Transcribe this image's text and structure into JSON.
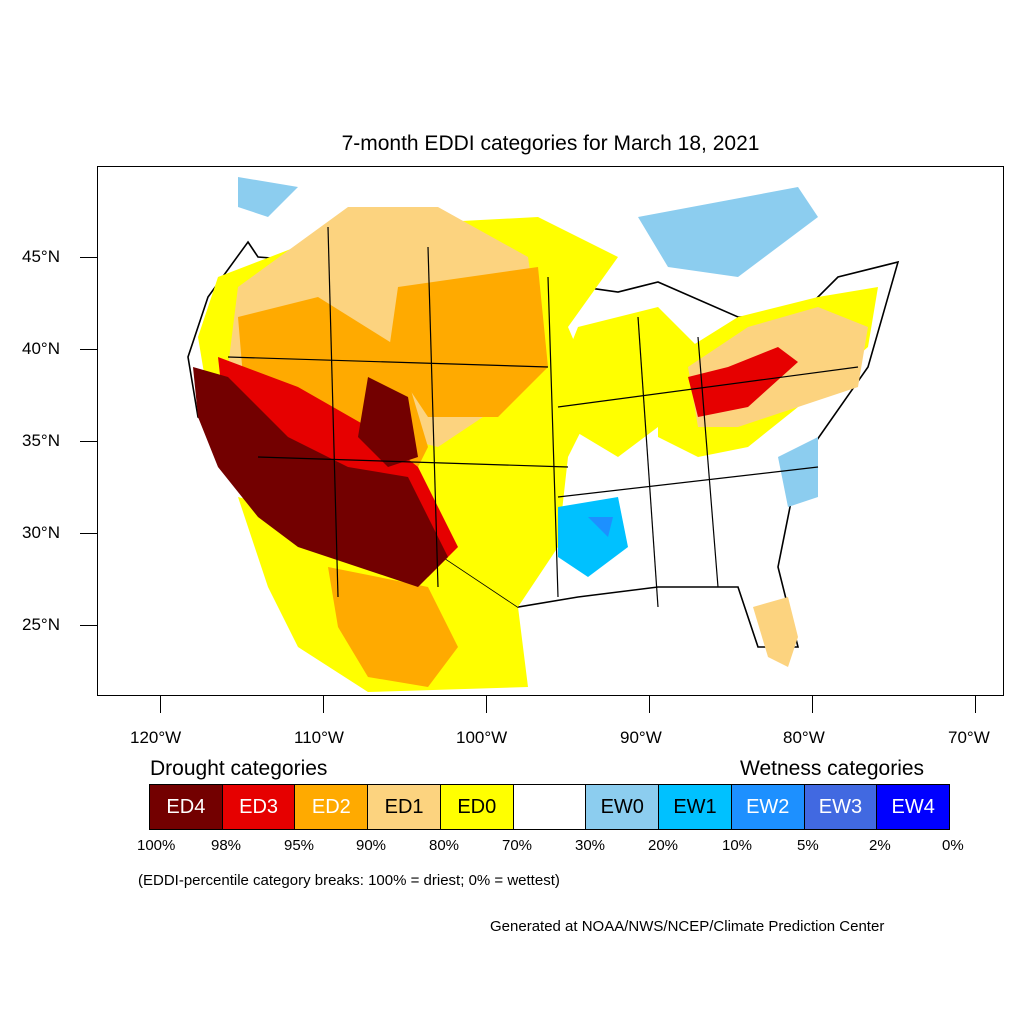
{
  "title": "7-month EDDI categories for March 18, 2021",
  "lat_labels": [
    "45°N",
    "40°N",
    "35°N",
    "30°N",
    "25°N"
  ],
  "lon_labels": [
    "120°W",
    "110°W",
    "100°W",
    "90°W",
    "80°W",
    "70°W"
  ],
  "legend": {
    "drought_heading": "Drought categories",
    "wetness_heading": "Wetness categories",
    "categories": [
      {
        "label": "ED4",
        "color": "#730000",
        "text_color": "#ffffff"
      },
      {
        "label": "ED3",
        "color": "#e60000",
        "text_color": "#ffffff"
      },
      {
        "label": "ED2",
        "color": "#ffaa00",
        "text_color": "#ffffff"
      },
      {
        "label": "ED1",
        "color": "#fcd37f",
        "text_color": "#000000"
      },
      {
        "label": "ED0",
        "color": "#ffff00",
        "text_color": "#000000"
      },
      {
        "label": "",
        "color": "#ffffff",
        "text_color": "#000000"
      },
      {
        "label": "EW0",
        "color": "#8ccdef",
        "text_color": "#000000"
      },
      {
        "label": "EW1",
        "color": "#00c1ff",
        "text_color": "#000000"
      },
      {
        "label": "EW2",
        "color": "#1d90ff",
        "text_color": "#ffffff"
      },
      {
        "label": "EW3",
        "color": "#4169e1",
        "text_color": "#ffffff"
      },
      {
        "label": "EW4",
        "color": "#0000ff",
        "text_color": "#ffffff"
      }
    ],
    "percentiles": [
      "100%",
      "98%",
      "95%",
      "90%",
      "80%",
      "70%",
      "30%",
      "20%",
      "10%",
      "5%",
      "2%",
      "0%"
    ]
  },
  "note": "(EDDI-percentile category breaks: 100% = driest; 0% = wettest)",
  "credit": "Generated at NOAA/NWS/NCEP/Climate Prediction Center"
}
